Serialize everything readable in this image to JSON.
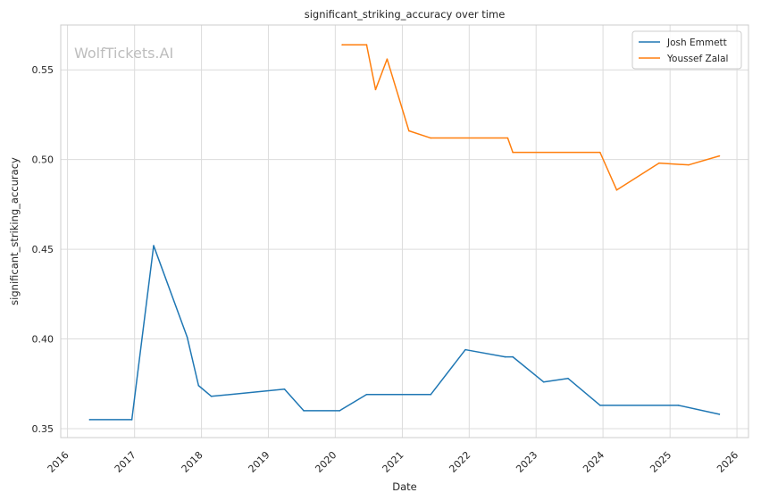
{
  "chart_data": {
    "type": "line",
    "title": "significant_striking_accuracy over time",
    "xlabel": "Date",
    "ylabel": "significant_striking_accuracy",
    "watermark": "WolfTickets.AI",
    "xlim": [
      "2015-11-25",
      "2026-03-05"
    ],
    "ylim": [
      0.345,
      0.575
    ],
    "x_ticks": [
      "2016",
      "2017",
      "2018",
      "2019",
      "2020",
      "2021",
      "2022",
      "2023",
      "2024",
      "2025",
      "2026"
    ],
    "y_ticks": [
      0.35,
      0.4,
      0.45,
      0.5,
      0.55
    ],
    "y_tick_labels": [
      "0.35",
      "0.40",
      "0.45",
      "0.50",
      "0.55"
    ],
    "grid": true,
    "legend_position": "top-right",
    "series": [
      {
        "name": "Josh Emmett",
        "color": "#1f77b4",
        "points": [
          [
            "2016-05-01",
            0.355
          ],
          [
            "2016-12-17",
            0.355
          ],
          [
            "2017-04-15",
            0.452
          ],
          [
            "2017-10-15",
            0.401
          ],
          [
            "2017-12-16",
            0.374
          ],
          [
            "2018-02-24",
            0.368
          ],
          [
            "2019-03-30",
            0.372
          ],
          [
            "2019-07-13",
            0.36
          ],
          [
            "2020-01-25",
            0.36
          ],
          [
            "2020-06-20",
            0.369
          ],
          [
            "2021-06-05",
            0.369
          ],
          [
            "2021-12-11",
            0.394
          ],
          [
            "2022-07-16",
            0.39
          ],
          [
            "2022-08-27",
            0.39
          ],
          [
            "2023-02-11",
            0.376
          ],
          [
            "2023-06-24",
            0.378
          ],
          [
            "2023-12-16",
            0.363
          ],
          [
            "2025-02-15",
            0.363
          ],
          [
            "2025-09-27",
            0.358
          ]
        ]
      },
      {
        "name": "Youssef Zalal",
        "color": "#ff7f0e",
        "points": [
          [
            "2020-02-08",
            0.564
          ],
          [
            "2020-06-20",
            0.564
          ],
          [
            "2020-08-08",
            0.539
          ],
          [
            "2020-10-10",
            0.556
          ],
          [
            "2021-02-06",
            0.516
          ],
          [
            "2021-06-05",
            0.512
          ],
          [
            "2022-07-30",
            0.512
          ],
          [
            "2022-08-27",
            0.504
          ],
          [
            "2023-12-16",
            0.504
          ],
          [
            "2024-03-16",
            0.483
          ],
          [
            "2024-11-02",
            0.498
          ],
          [
            "2025-04-12",
            0.497
          ],
          [
            "2025-09-27",
            0.502
          ]
        ]
      }
    ]
  }
}
